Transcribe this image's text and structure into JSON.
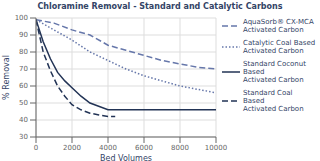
{
  "chart_data": {
    "type": "line",
    "title": "Chloramine Removal - Standard and Catalytic Carbons",
    "xlabel": "Bed Volumes",
    "ylabel": "% Removal",
    "xlim": [
      0,
      10000
    ],
    "ylim": [
      30,
      100
    ],
    "xticks": [
      0,
      2000,
      4000,
      6000,
      8000,
      10000
    ],
    "yticks": [
      30,
      40,
      50,
      60,
      70,
      80,
      90,
      100
    ],
    "grid": true,
    "legend": "right",
    "series": [
      {
        "name": "AquaSorb® CX-MCA\nActivated Carbon",
        "color": "#6677aa",
        "line_style": "dashed",
        "x": [
          0,
          1000,
          2000,
          3000,
          4000,
          5000,
          6000,
          7000,
          8000,
          9000,
          10000
        ],
        "values": [
          99,
          97,
          93,
          90,
          84,
          81,
          78,
          75,
          73,
          71,
          70
        ]
      },
      {
        "name": "Catalytic Coal Based\nActivated Carbon",
        "color": "#6677aa",
        "line_style": "dotted",
        "x": [
          0,
          1000,
          2000,
          3000,
          4000,
          5000,
          6000,
          7000,
          8000,
          9000,
          10000
        ],
        "values": [
          99,
          93,
          87,
          80,
          75,
          70,
          66,
          63,
          60,
          58,
          56
        ]
      },
      {
        "name": "Standard Coconut Based\nActivated Carbon",
        "color": "#223355",
        "line_style": "solid",
        "x": [
          0,
          400,
          800,
          1200,
          1600,
          2000,
          2500,
          3000,
          4000,
          5000,
          6000,
          7000,
          8000,
          9000,
          10000
        ],
        "values": [
          99,
          86,
          76,
          68,
          63,
          59,
          54,
          50,
          46,
          46,
          46,
          46,
          46,
          46,
          46
        ]
      },
      {
        "name": "Standard Coal Based\nActivated Carbon",
        "color": "#223355",
        "line_style": "dashed",
        "x": [
          0,
          400,
          800,
          1200,
          1600,
          2000,
          2500,
          3000,
          3500,
          4000,
          4200,
          4400
        ],
        "values": [
          99,
          80,
          69,
          60,
          54,
          49,
          46,
          44,
          43,
          42,
          42,
          42
        ]
      }
    ]
  }
}
